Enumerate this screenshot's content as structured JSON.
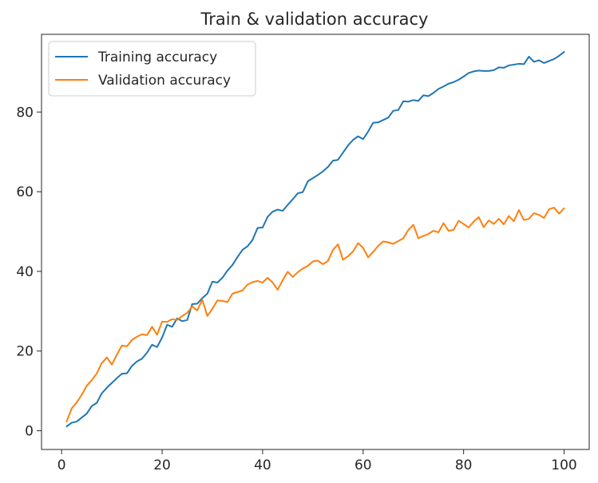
{
  "chart_data": {
    "type": "line",
    "title": "Train & validation accuracy",
    "xlabel": "",
    "ylabel": "",
    "xlim": [
      -4,
      105
    ],
    "ylim": [
      -4.7,
      99.5
    ],
    "xticks": [
      0,
      20,
      40,
      60,
      80,
      100
    ],
    "yticks": [
      0,
      20,
      40,
      60,
      80
    ],
    "grid": false,
    "legend": "top-left",
    "series": [
      {
        "name": "Training accuracy",
        "color": "#1f77b4",
        "x": [
          1,
          2,
          3,
          4,
          5,
          6,
          7,
          8,
          9,
          10,
          11,
          12,
          13,
          14,
          15,
          16,
          17,
          18,
          19,
          20,
          21,
          22,
          23,
          24,
          25,
          26,
          27,
          28,
          29,
          30,
          31,
          32,
          33,
          34,
          35,
          36,
          37,
          38,
          39,
          40,
          41,
          42,
          43,
          44,
          45,
          46,
          47,
          48,
          49,
          50,
          51,
          52,
          53,
          54,
          55,
          56,
          57,
          58,
          59,
          60,
          61,
          62,
          63,
          64,
          65,
          66,
          67,
          68,
          69,
          70,
          71,
          72,
          73,
          74,
          75,
          76,
          77,
          78,
          79,
          80,
          81,
          82,
          83,
          84,
          85,
          86,
          87,
          88,
          89,
          90,
          91,
          92,
          93,
          94,
          95,
          96,
          97,
          98,
          99,
          100
        ],
        "y": [
          1.1,
          2.0,
          2.3,
          3.3,
          4.3,
          6.2,
          7.0,
          9.4,
          10.8,
          12.0,
          13.2,
          14.3,
          14.4,
          16.3,
          17.4,
          18.1,
          19.6,
          21.6,
          21.0,
          23.4,
          26.6,
          26.1,
          28.2,
          27.5,
          27.8,
          31.8,
          31.9,
          33.3,
          34.4,
          37.4,
          37.2,
          38.4,
          40.2,
          41.6,
          43.6,
          45.4,
          46.3,
          47.9,
          50.9,
          51.0,
          53.7,
          55.0,
          55.5,
          55.2,
          56.7,
          58.1,
          59.6,
          59.9,
          62.6,
          63.4,
          64.2,
          65.1,
          66.2,
          67.8,
          68.0,
          69.8,
          71.6,
          73.0,
          73.9,
          73.2,
          75.1,
          77.3,
          77.4,
          78.0,
          78.6,
          80.3,
          80.5,
          82.7,
          82.6,
          83.0,
          82.8,
          84.2,
          84.0,
          84.8,
          85.8,
          86.4,
          87.1,
          87.5,
          88.1,
          88.9,
          89.8,
          90.2,
          90.4,
          90.3,
          90.3,
          90.5,
          91.2,
          91.1,
          91.7,
          91.9,
          92.1,
          92.0,
          93.9,
          92.6,
          93.0,
          92.3,
          92.8,
          93.3,
          94.1,
          95.1
        ]
      },
      {
        "name": "Validation accuracy",
        "color": "#ff7f0e",
        "x": [
          1,
          2,
          3,
          4,
          5,
          6,
          7,
          8,
          9,
          10,
          11,
          12,
          13,
          14,
          15,
          16,
          17,
          18,
          19,
          20,
          21,
          22,
          23,
          24,
          25,
          26,
          27,
          28,
          29,
          30,
          31,
          32,
          33,
          34,
          35,
          36,
          37,
          38,
          39,
          40,
          41,
          42,
          43,
          44,
          45,
          46,
          47,
          48,
          49,
          50,
          51,
          52,
          53,
          54,
          55,
          56,
          57,
          58,
          59,
          60,
          61,
          62,
          63,
          64,
          65,
          66,
          67,
          68,
          69,
          70,
          71,
          72,
          73,
          74,
          75,
          76,
          77,
          78,
          79,
          80,
          81,
          82,
          83,
          84,
          85,
          86,
          87,
          88,
          89,
          90,
          91,
          92,
          93,
          94,
          95,
          96,
          97,
          98,
          99,
          100
        ],
        "y": [
          2.3,
          5.6,
          7.1,
          9.0,
          11.3,
          12.7,
          14.4,
          17.0,
          18.4,
          16.6,
          19.1,
          21.4,
          21.2,
          22.8,
          23.6,
          24.2,
          24.0,
          26.1,
          24.1,
          27.4,
          27.3,
          28.0,
          27.8,
          28.8,
          29.6,
          31.2,
          30.2,
          32.9,
          28.8,
          30.6,
          32.7,
          32.6,
          32.3,
          34.4,
          34.8,
          35.2,
          36.7,
          37.3,
          37.6,
          37.2,
          38.4,
          37.2,
          35.4,
          37.8,
          39.9,
          38.6,
          39.8,
          40.7,
          41.4,
          42.5,
          42.7,
          41.8,
          42.6,
          45.4,
          46.8,
          42.9,
          43.8,
          45.0,
          47.1,
          45.9,
          43.5,
          44.9,
          46.4,
          47.5,
          47.3,
          46.9,
          47.6,
          48.3,
          50.4,
          51.7,
          48.3,
          48.9,
          49.4,
          50.2,
          49.8,
          52.1,
          50.2,
          50.4,
          52.7,
          51.9,
          51.0,
          52.5,
          53.6,
          51.1,
          52.8,
          51.9,
          53.2,
          51.8,
          53.9,
          52.6,
          55.4,
          52.9,
          53.2,
          54.6,
          54.2,
          53.4,
          55.6,
          56.0,
          54.5,
          55.8
        ]
      }
    ]
  }
}
